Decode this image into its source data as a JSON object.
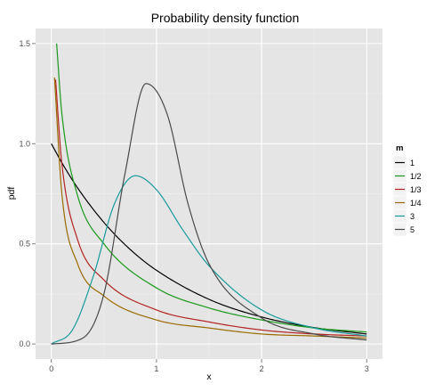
{
  "chart_data": {
    "type": "line",
    "title": "Probability density function",
    "xlabel": "x",
    "ylabel": "pdf",
    "xlim": [
      -0.15,
      3.15
    ],
    "ylim": [
      -0.075,
      1.575
    ],
    "x_ticks": [
      0,
      1,
      2,
      3
    ],
    "x_tick_labels": [
      "0",
      "1",
      "2",
      "3"
    ],
    "y_ticks": [
      0.0,
      0.5,
      1.0,
      1.5
    ],
    "y_tick_labels": [
      "0.0",
      "0.5",
      "1.0",
      "1.5"
    ],
    "grid": true,
    "background": "#e5e5e5",
    "legend": {
      "title": "m",
      "placement": "right",
      "entries": [
        "1",
        "1/2",
        "1/3",
        "1/4",
        "3",
        "5"
      ]
    },
    "series": [
      {
        "name": "1",
        "m": 1,
        "color": "#000000",
        "x": [
          0,
          0.1,
          0.25,
          0.5,
          0.75,
          1,
          1.5,
          2,
          2.5,
          3
        ],
        "values": [
          1.0,
          0.905,
          0.779,
          0.607,
          0.472,
          0.368,
          0.223,
          0.135,
          0.082,
          0.05
        ]
      },
      {
        "name": "1/2",
        "m": 0.5,
        "color": "#1a9a1a",
        "x": [
          0.05,
          0.1,
          0.25,
          0.5,
          1,
          1.5,
          2,
          2.5,
          3
        ],
        "values": [
          1.5,
          1.15,
          0.74,
          0.5,
          0.28,
          0.18,
          0.12,
          0.08,
          0.06
        ]
      },
      {
        "name": "1/3",
        "m": 0.333,
        "color": "#b22222",
        "x": [
          0.04,
          0.1,
          0.25,
          0.5,
          1,
          1.5,
          2,
          2.5,
          3
        ],
        "values": [
          1.32,
          0.9,
          0.52,
          0.32,
          0.17,
          0.11,
          0.07,
          0.05,
          0.04
        ]
      },
      {
        "name": "1/4",
        "m": 0.25,
        "color": "#9a6a00",
        "x": [
          0.03,
          0.1,
          0.25,
          0.5,
          1,
          1.5,
          2,
          2.5,
          3
        ],
        "values": [
          1.33,
          0.75,
          0.4,
          0.24,
          0.12,
          0.08,
          0.05,
          0.04,
          0.03
        ]
      },
      {
        "name": "3",
        "m": 3,
        "color": "#1a9a9a",
        "x": [
          0,
          0.2,
          0.4,
          0.6,
          0.8,
          1,
          1.25,
          1.5,
          2,
          2.5,
          3
        ],
        "values": [
          0.0,
          0.07,
          0.34,
          0.7,
          0.84,
          0.77,
          0.57,
          0.39,
          0.17,
          0.08,
          0.04
        ]
      },
      {
        "name": "5",
        "m": 5,
        "color": "#4a4a4a",
        "x": [
          0,
          0.3,
          0.5,
          0.7,
          0.9,
          1.1,
          1.3,
          1.5,
          2,
          2.5,
          3
        ],
        "values": [
          0.0,
          0.03,
          0.25,
          0.85,
          1.3,
          1.15,
          0.7,
          0.4,
          0.13,
          0.05,
          0.02
        ]
      }
    ]
  }
}
